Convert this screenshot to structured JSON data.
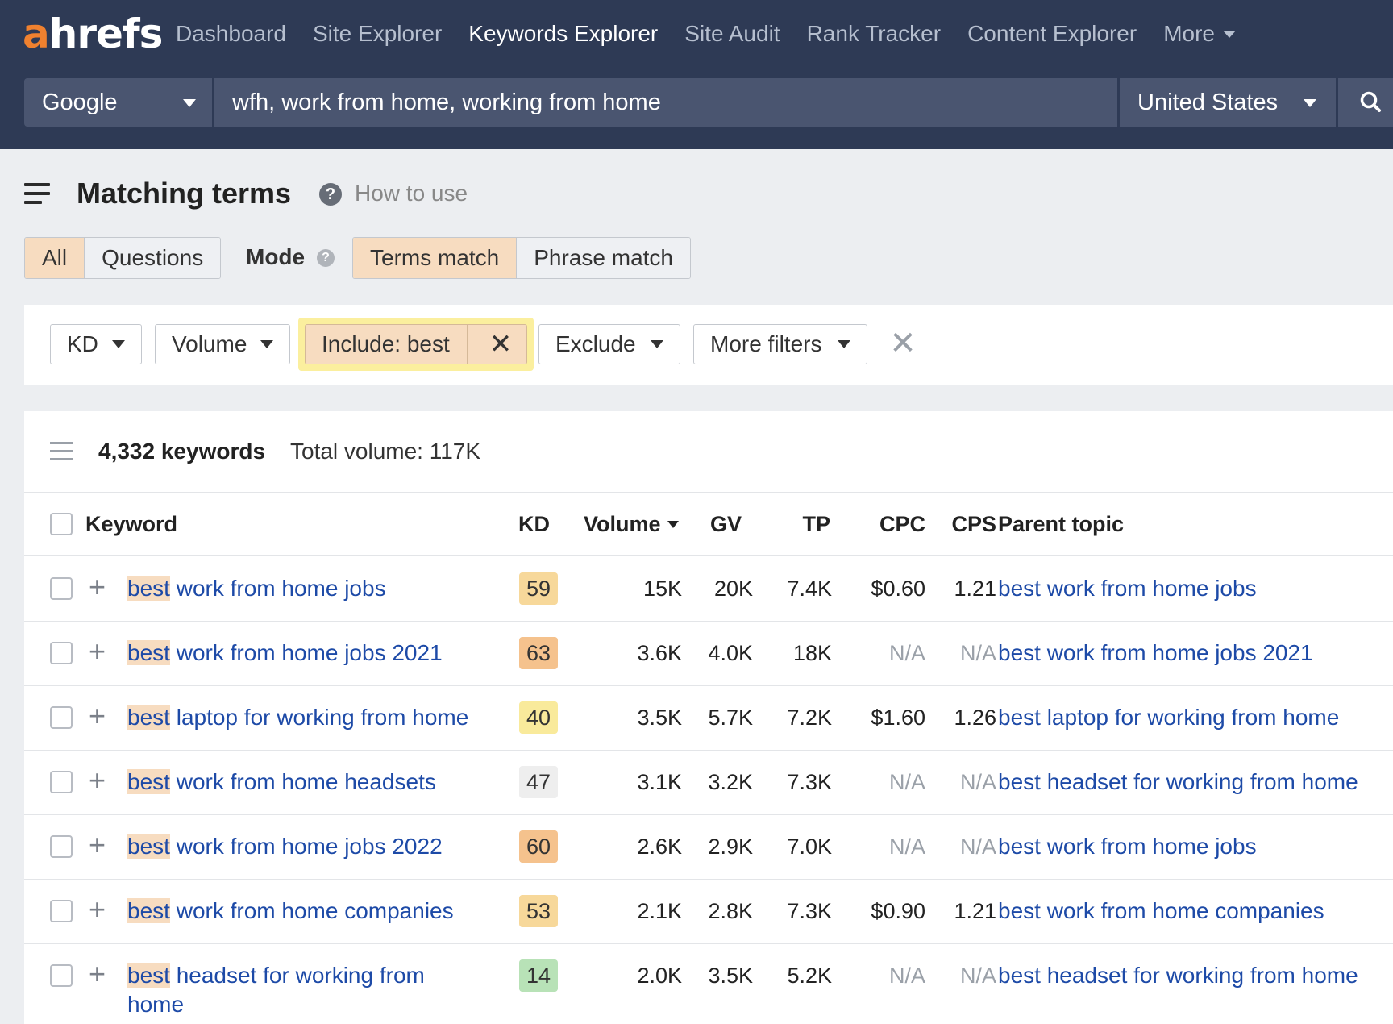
{
  "brand": {
    "logo_a": "a",
    "logo_rest": "hrefs",
    "accent": "#f0812f"
  },
  "nav": {
    "items": [
      "Dashboard",
      "Site Explorer",
      "Keywords Explorer",
      "Site Audit",
      "Rank Tracker",
      "Content Explorer",
      "More"
    ],
    "active": "Keywords Explorer"
  },
  "search": {
    "engine": "Google",
    "query": "wfh, work from home, working from home",
    "country": "United States"
  },
  "page": {
    "title": "Matching terms",
    "how_to": "How to use",
    "help_glyph": "?"
  },
  "tabs": {
    "all": "All",
    "questions": "Questions",
    "mode_label": "Mode",
    "terms_match": "Terms match",
    "phrase_match": "Phrase match"
  },
  "filters": {
    "kd": "KD",
    "volume": "Volume",
    "include": "Include: best",
    "exclude": "Exclude",
    "more": "More filters"
  },
  "summary": {
    "count": "4,332 keywords",
    "total_volume": "Total volume: 117K"
  },
  "columns": {
    "keyword": "Keyword",
    "kd": "KD",
    "volume": "Volume",
    "gv": "GV",
    "tp": "TP",
    "cpc": "CPC",
    "cps": "CPS",
    "parent": "Parent topic"
  },
  "rows": [
    {
      "hl": "best",
      "rest": " work from home jobs",
      "kd": "59",
      "kd_color": "#f7d89a",
      "volume": "15K",
      "gv": "20K",
      "tp": "7.4K",
      "cpc": "$0.60",
      "cps": "1.21",
      "parent": "best work from home jobs"
    },
    {
      "hl": "best",
      "rest": " work from home jobs 2021",
      "kd": "63",
      "kd_color": "#f5c28d",
      "volume": "3.6K",
      "gv": "4.0K",
      "tp": "18K",
      "cpc": "N/A",
      "cps": "N/A",
      "parent": "best work from home jobs 2021"
    },
    {
      "hl": "best",
      "rest": " laptop for working from home",
      "kd": "40",
      "kd_color": "#f9ea9b",
      "volume": "3.5K",
      "gv": "5.7K",
      "tp": "7.2K",
      "cpc": "$1.60",
      "cps": "1.26",
      "parent": "best laptop for working from home"
    },
    {
      "hl": "best",
      "rest": " work from home headsets",
      "kd": "47",
      "kd_color": "#eeeeee",
      "volume": "3.1K",
      "gv": "3.2K",
      "tp": "7.3K",
      "cpc": "N/A",
      "cps": "N/A",
      "parent": "best headset for working from home"
    },
    {
      "hl": "best",
      "rest": " work from home jobs 2022",
      "kd": "60",
      "kd_color": "#f5c28d",
      "volume": "2.6K",
      "gv": "2.9K",
      "tp": "7.0K",
      "cpc": "N/A",
      "cps": "N/A",
      "parent": "best work from home jobs"
    },
    {
      "hl": "best",
      "rest": " work from home companies",
      "kd": "53",
      "kd_color": "#f7d89a",
      "volume": "2.1K",
      "gv": "2.8K",
      "tp": "7.3K",
      "cpc": "$0.90",
      "cps": "1.21",
      "parent": "best work from home companies"
    },
    {
      "hl": "best",
      "rest": " headset for working from",
      "rest2": "home",
      "kd": "14",
      "kd_color": "#b8e2b7",
      "volume": "2.0K",
      "gv": "3.5K",
      "tp": "5.2K",
      "cpc": "N/A",
      "cps": "N/A",
      "parent": "best headset for working from home"
    }
  ]
}
